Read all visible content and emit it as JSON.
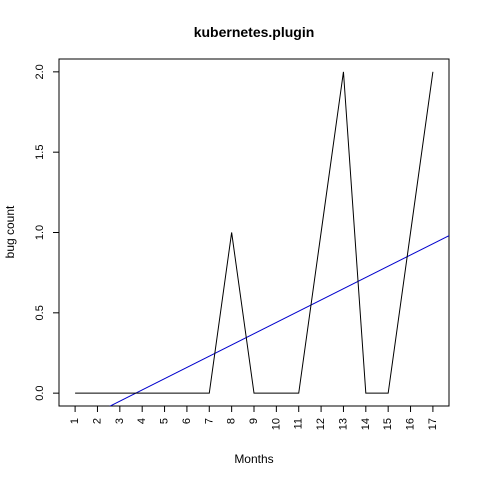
{
  "chart_data": {
    "type": "line",
    "title": "kubernetes.plugin",
    "xlabel": "Months",
    "ylabel": "bug count",
    "x": [
      1,
      2,
      3,
      4,
      5,
      6,
      7,
      8,
      9,
      10,
      11,
      12,
      13,
      14,
      15,
      16,
      17
    ],
    "x_tick_labels": [
      "1",
      "2",
      "3",
      "4",
      "5",
      "6",
      "7",
      "8",
      "9",
      "10",
      "11",
      "12",
      "13",
      "14",
      "15",
      "16",
      "17"
    ],
    "y_tick_labels": [
      "0.0",
      "0.5",
      "1.0",
      "1.5",
      "2.0"
    ],
    "series": [
      {
        "values": [
          0,
          0,
          0,
          0,
          0,
          0,
          0,
          1,
          0,
          0,
          0,
          1,
          2,
          0,
          0,
          1,
          2
        ],
        "color": "#000000"
      }
    ],
    "trend_line": {
      "color": "#0000cc",
      "slope": 0.07,
      "intercept": -0.26
    },
    "xlim": [
      0.28,
      17.72
    ],
    "ylim": [
      -0.08,
      2.08
    ],
    "grid": false,
    "legend": "none"
  }
}
